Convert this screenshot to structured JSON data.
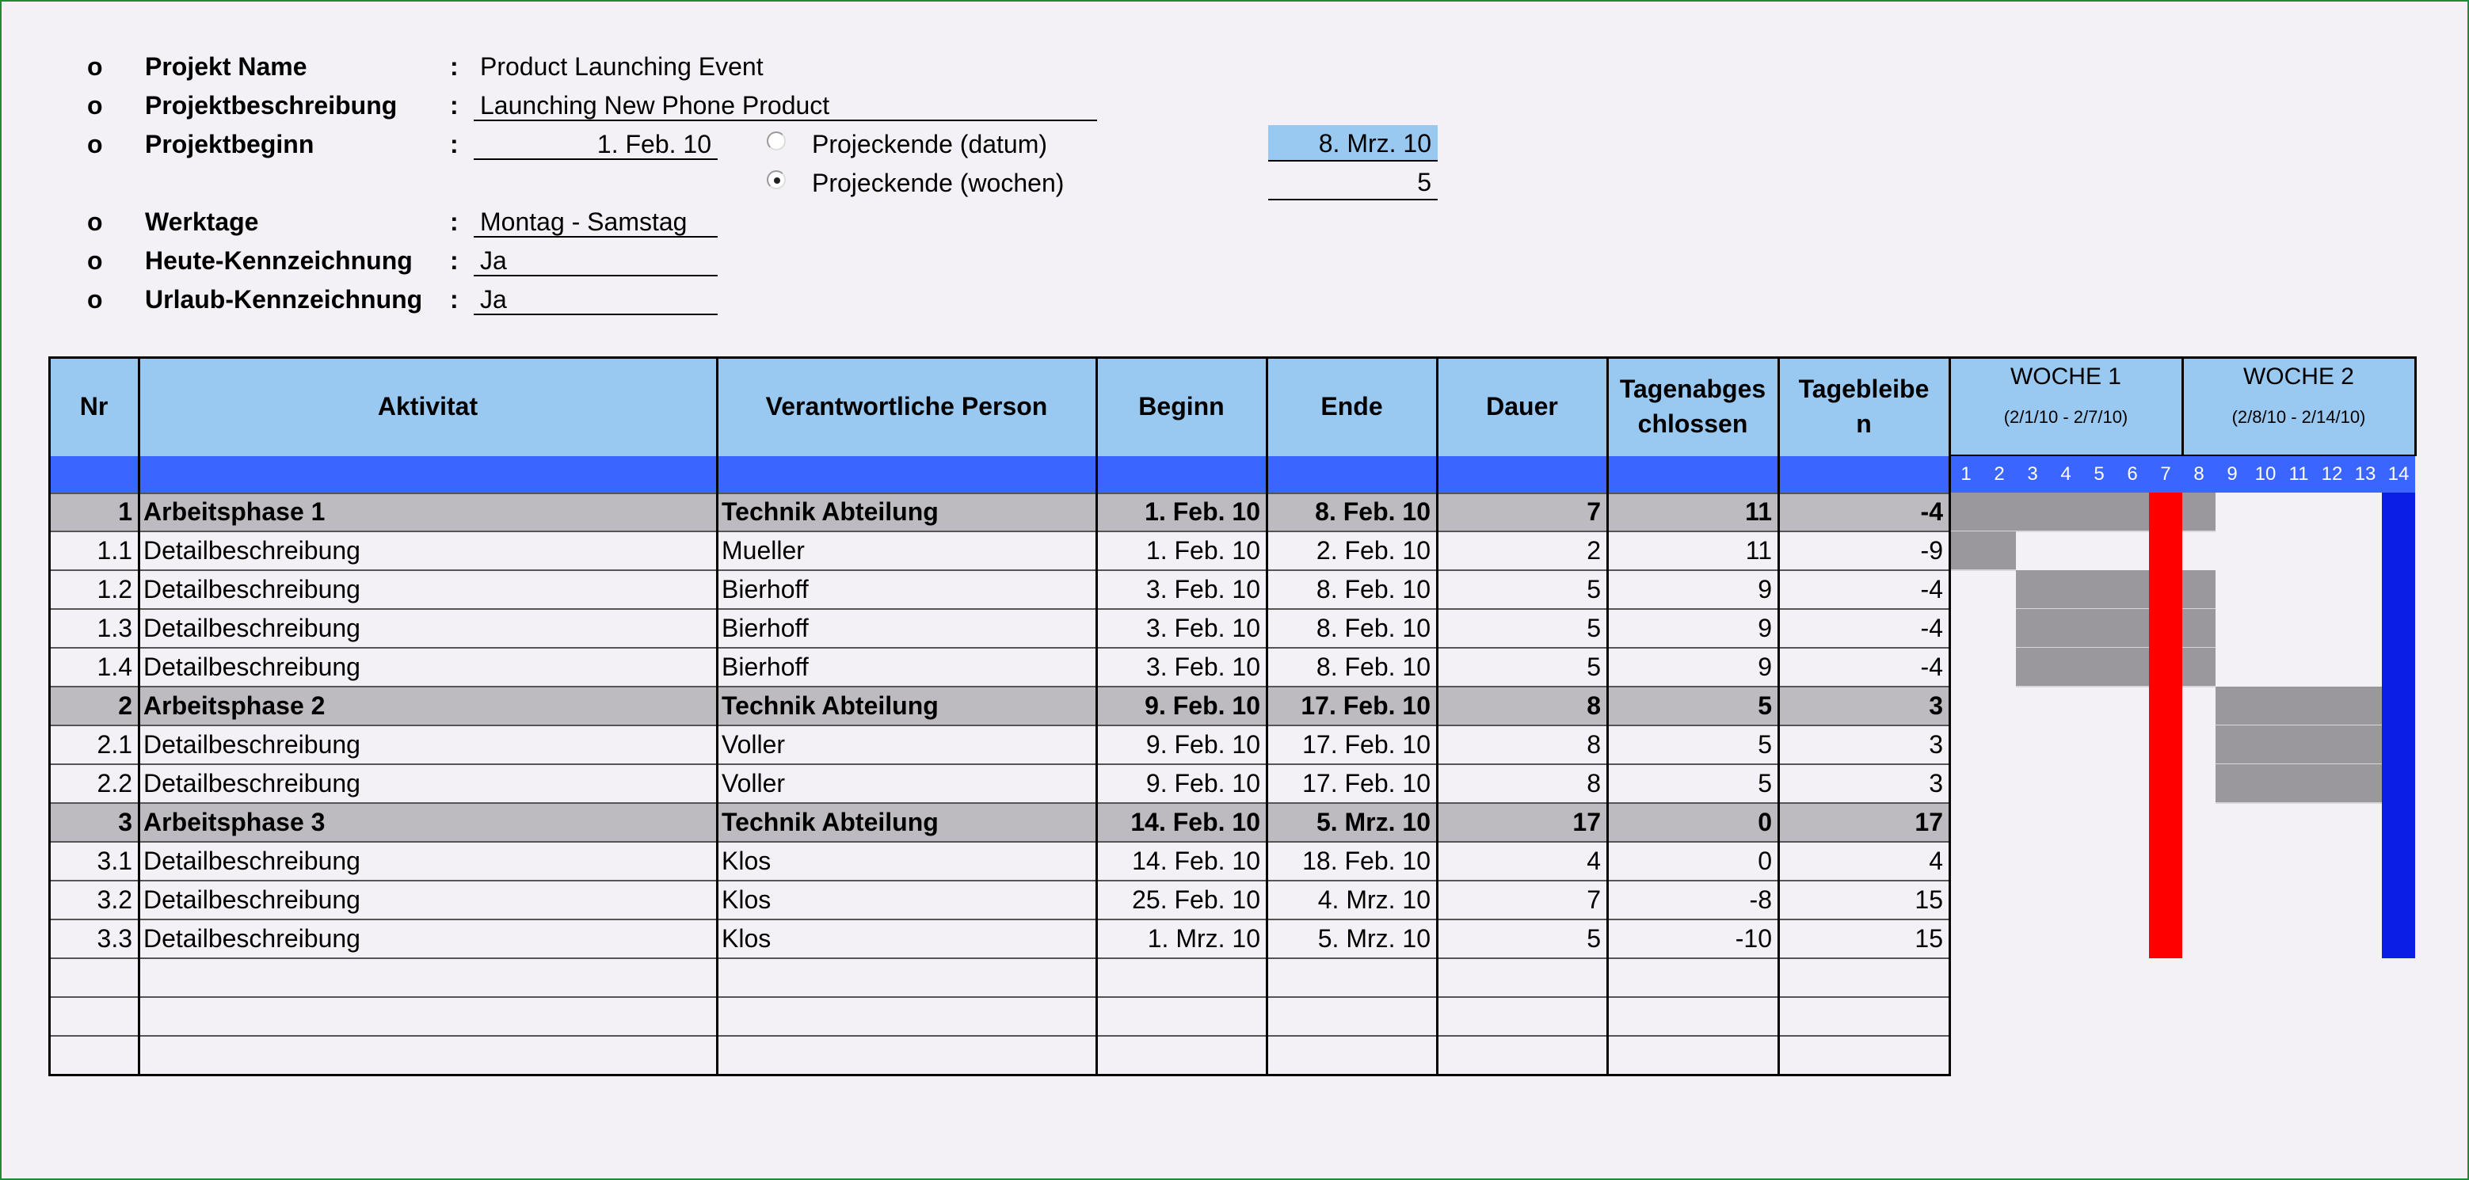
{
  "project": {
    "name_label": "Projekt Name",
    "name_value": "Product Launching Event",
    "desc_label": "Projektbeschreibung",
    "desc_value": "Launching New Phone Product",
    "start_label": "Projektbeginn",
    "start_value": "1. Feb. 10",
    "end_date_option": "Projeckende (datum)",
    "end_date_value": "8. Mrz. 10",
    "end_weeks_option": "Projeckende (wochen)",
    "end_weeks_value": "5",
    "workdays_label": "Werktage",
    "workdays_value": "Montag - Samstag",
    "today_label": "Heute-Kennzeichnung",
    "today_value": "Ja",
    "vacation_label": "Urlaub-Kennzeichnung",
    "vacation_value": "Ja",
    "bullet": "o",
    "colon": ":"
  },
  "table": {
    "headers": {
      "nr": "Nr",
      "activity": "Aktivitat",
      "person": "Verantwortliche Person",
      "start": "Beginn",
      "end": "Ende",
      "duration": "Dauer",
      "days_done_1": "Tagenabges",
      "days_done_2": "chlossen",
      "days_left_1": "Tagebleibe",
      "days_left_2": "n"
    },
    "weeks": [
      {
        "label": "WOCHE 1",
        "range": "(2/1/10 - 2/7/10)"
      },
      {
        "label": "WOCHE 2",
        "range": "(2/8/10 - 2/14/10)"
      }
    ],
    "days": [
      "1",
      "2",
      "3",
      "4",
      "5",
      "6",
      "7",
      "8",
      "9",
      "10",
      "11",
      "12",
      "13",
      "14"
    ],
    "rows": [
      {
        "nr": "1",
        "activity": "Arbeitsphase 1",
        "person": "Technik Abteilung",
        "start": "1. Feb. 10",
        "end": "8. Feb. 10",
        "duration": "7",
        "done": "11",
        "left": "-4",
        "phase": true
      },
      {
        "nr": "1.1",
        "activity": "Detailbeschreibung",
        "person": "Mueller",
        "start": "1. Feb. 10",
        "end": "2. Feb. 10",
        "duration": "2",
        "done": "11",
        "left": "-9",
        "phase": false
      },
      {
        "nr": "1.2",
        "activity": "Detailbeschreibung",
        "person": "Bierhoff",
        "start": "3. Feb. 10",
        "end": "8. Feb. 10",
        "duration": "5",
        "done": "9",
        "left": "-4",
        "phase": false
      },
      {
        "nr": "1.3",
        "activity": "Detailbeschreibung",
        "person": "Bierhoff",
        "start": "3. Feb. 10",
        "end": "8. Feb. 10",
        "duration": "5",
        "done": "9",
        "left": "-4",
        "phase": false
      },
      {
        "nr": "1.4",
        "activity": "Detailbeschreibung",
        "person": "Bierhoff",
        "start": "3. Feb. 10",
        "end": "8. Feb. 10",
        "duration": "5",
        "done": "9",
        "left": "-4",
        "phase": false
      },
      {
        "nr": "2",
        "activity": "Arbeitsphase 2",
        "person": "Technik Abteilung",
        "start": "9. Feb. 10",
        "end": "17. Feb. 10",
        "duration": "8",
        "done": "5",
        "left": "3",
        "phase": true
      },
      {
        "nr": "2.1",
        "activity": "Detailbeschreibung",
        "person": "Voller",
        "start": "9. Feb. 10",
        "end": "17. Feb. 10",
        "duration": "8",
        "done": "5",
        "left": "3",
        "phase": false
      },
      {
        "nr": "2.2",
        "activity": "Detailbeschreibung",
        "person": "Voller",
        "start": "9. Feb. 10",
        "end": "17. Feb. 10",
        "duration": "8",
        "done": "5",
        "left": "3",
        "phase": false
      },
      {
        "nr": "3",
        "activity": "Arbeitsphase 3",
        "person": "Technik Abteilung",
        "start": "14. Feb. 10",
        "end": "5. Mrz. 10",
        "duration": "17",
        "done": "0",
        "left": "17",
        "phase": true
      },
      {
        "nr": "3.1",
        "activity": "Detailbeschreibung",
        "person": "Klos",
        "start": "14. Feb. 10",
        "end": "18. Feb. 10",
        "duration": "4",
        "done": "0",
        "left": "4",
        "phase": false
      },
      {
        "nr": "3.2",
        "activity": "Detailbeschreibung",
        "person": "Klos",
        "start": "25. Feb. 10",
        "end": "4. Mrz. 10",
        "duration": "7",
        "done": "-8",
        "left": "15",
        "phase": false
      },
      {
        "nr": "3.3",
        "activity": "Detailbeschreibung",
        "person": "Klos",
        "start": "1. Mrz. 10",
        "end": "5. Mrz. 10",
        "duration": "5",
        "done": "-10",
        "left": "15",
        "phase": false
      }
    ],
    "empty_rows": 3,
    "gantt_bars": [
      {
        "row": 0,
        "from_day": 1,
        "to_day": 8
      },
      {
        "row": 1,
        "from_day": 1,
        "to_day": 2
      },
      {
        "row": 2,
        "from_day": 3,
        "to_day": 8
      },
      {
        "row": 3,
        "from_day": 3,
        "to_day": 8
      },
      {
        "row": 4,
        "from_day": 3,
        "to_day": 8
      },
      {
        "row": 5,
        "from_day": 9,
        "to_day": 13
      },
      {
        "row": 6,
        "from_day": 9,
        "to_day": 13
      },
      {
        "row": 7,
        "from_day": 9,
        "to_day": 13
      }
    ],
    "markers": [
      {
        "day": 7,
        "color": "#ff0000",
        "meaning": "today"
      },
      {
        "day": 14,
        "color": "#0a1ee6",
        "meaning": "vacation"
      }
    ]
  },
  "colors": {
    "header_bg": "#99c8f0",
    "band": "#3a66ff",
    "phase_row": "#bdbbc0",
    "bar": "#9a989c",
    "end_date_highlight": "#99c8f0"
  }
}
